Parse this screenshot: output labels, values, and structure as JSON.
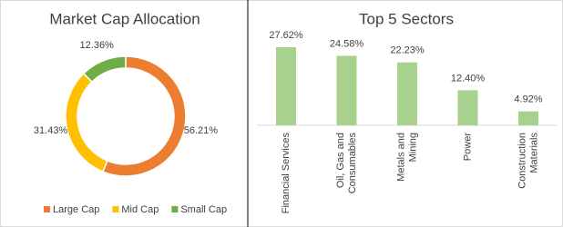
{
  "chart_data": [
    {
      "type": "pie",
      "title": "Market Cap Allocation",
      "series": [
        {
          "name": "Large Cap",
          "color": "#ed7d31",
          "values": [
            56.21
          ],
          "value_labels": [
            "56.21%"
          ]
        },
        {
          "name": "Mid Cap",
          "color": "#ffc000",
          "values": [
            31.43
          ],
          "value_labels": [
            "31.43%"
          ]
        },
        {
          "name": "Small Cap",
          "color": "#70ad47",
          "values": [
            12.36
          ],
          "value_labels": [
            "12.36%"
          ]
        }
      ],
      "legend": "bottom"
    },
    {
      "type": "bar",
      "title": "Top 5 Sectors",
      "categories": [
        "Financial Services",
        "Oil, Gas and\nConsumables",
        "Metals and\nMining",
        "Power",
        "Construction\nMaterials"
      ],
      "values": [
        27.62,
        24.58,
        22.23,
        12.4,
        4.92
      ],
      "value_labels": [
        "27.62%",
        "24.58%",
        "22.23%",
        "12.40%",
        "4.92%"
      ],
      "color": "#a9d18e"
    }
  ]
}
